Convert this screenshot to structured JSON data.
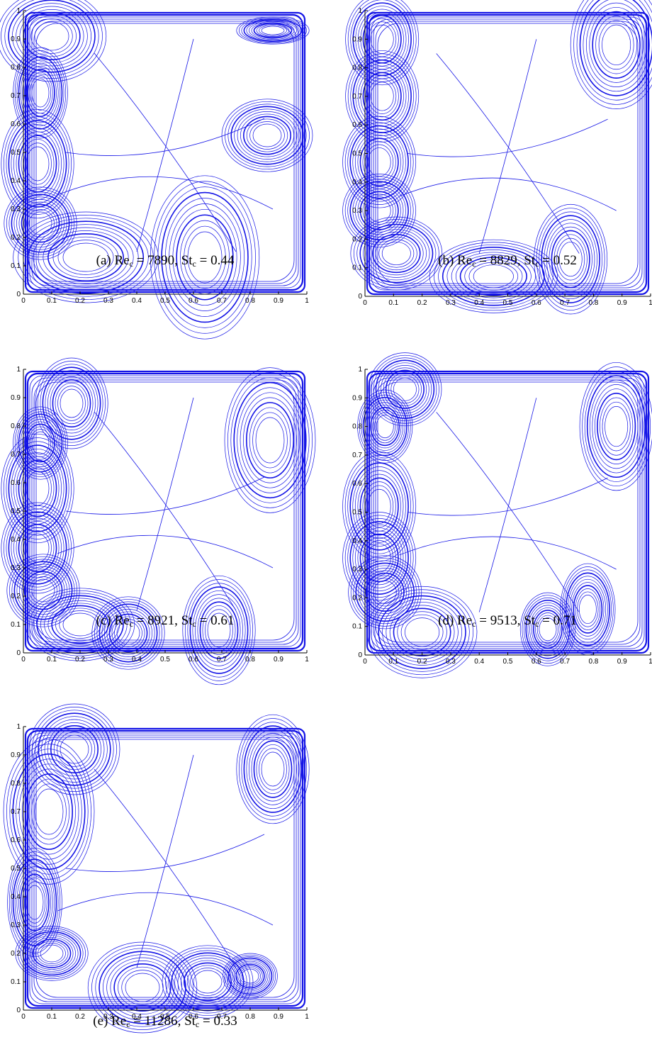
{
  "figure": {
    "panels": [
      {
        "label": "(a)",
        "re_value": "7890",
        "st_value": "0.44",
        "cores": [
          {
            "cx": 0.1,
            "cy": 0.91,
            "rx": 0.06,
            "ry": 0.05
          },
          {
            "cx": 0.06,
            "cy": 0.71,
            "rx": 0.03,
            "ry": 0.05
          },
          {
            "cx": 0.05,
            "cy": 0.46,
            "rx": 0.04,
            "ry": 0.06
          },
          {
            "cx": 0.06,
            "cy": 0.25,
            "rx": 0.04,
            "ry": 0.04
          },
          {
            "cx": 0.22,
            "cy": 0.13,
            "rx": 0.08,
            "ry": 0.05
          },
          {
            "cx": 0.64,
            "cy": 0.13,
            "rx": 0.06,
            "ry": 0.09
          },
          {
            "cx": 0.86,
            "cy": 0.56,
            "rx": 0.05,
            "ry": 0.04
          },
          {
            "cx": 0.88,
            "cy": 0.93,
            "rx": 0.04,
            "ry": 0.015
          }
        ]
      },
      {
        "label": "(b)",
        "re_value": "8829",
        "st_value": "0.52",
        "cores": [
          {
            "cx": 0.06,
            "cy": 0.9,
            "rx": 0.04,
            "ry": 0.05
          },
          {
            "cx": 0.06,
            "cy": 0.7,
            "rx": 0.04,
            "ry": 0.05
          },
          {
            "cx": 0.05,
            "cy": 0.47,
            "rx": 0.04,
            "ry": 0.05
          },
          {
            "cx": 0.05,
            "cy": 0.3,
            "rx": 0.04,
            "ry": 0.04
          },
          {
            "cx": 0.11,
            "cy": 0.15,
            "rx": 0.05,
            "ry": 0.04
          },
          {
            "cx": 0.45,
            "cy": 0.07,
            "rx": 0.07,
            "ry": 0.04
          },
          {
            "cx": 0.72,
            "cy": 0.13,
            "rx": 0.04,
            "ry": 0.06
          },
          {
            "cx": 0.88,
            "cy": 0.88,
            "rx": 0.05,
            "ry": 0.07
          }
        ]
      },
      {
        "label": "(c)",
        "re_value": "8921",
        "st_value": "0.61",
        "cores": [
          {
            "cx": 0.17,
            "cy": 0.88,
            "rx": 0.04,
            "ry": 0.05
          },
          {
            "cx": 0.06,
            "cy": 0.74,
            "rx": 0.03,
            "ry": 0.04
          },
          {
            "cx": 0.05,
            "cy": 0.58,
            "rx": 0.04,
            "ry": 0.06
          },
          {
            "cx": 0.05,
            "cy": 0.37,
            "rx": 0.04,
            "ry": 0.05
          },
          {
            "cx": 0.07,
            "cy": 0.22,
            "rx": 0.04,
            "ry": 0.04
          },
          {
            "cx": 0.2,
            "cy": 0.1,
            "rx": 0.06,
            "ry": 0.04
          },
          {
            "cx": 0.37,
            "cy": 0.07,
            "rx": 0.04,
            "ry": 0.04
          },
          {
            "cx": 0.69,
            "cy": 0.08,
            "rx": 0.04,
            "ry": 0.06
          },
          {
            "cx": 0.87,
            "cy": 0.75,
            "rx": 0.05,
            "ry": 0.08
          }
        ]
      },
      {
        "label": "(d)",
        "re_value": "9513",
        "st_value": "0.71",
        "cores": [
          {
            "cx": 0.14,
            "cy": 0.93,
            "rx": 0.04,
            "ry": 0.04
          },
          {
            "cx": 0.07,
            "cy": 0.8,
            "rx": 0.03,
            "ry": 0.04
          },
          {
            "cx": 0.05,
            "cy": 0.52,
            "rx": 0.04,
            "ry": 0.06
          },
          {
            "cx": 0.05,
            "cy": 0.34,
            "rx": 0.04,
            "ry": 0.05
          },
          {
            "cx": 0.07,
            "cy": 0.22,
            "rx": 0.04,
            "ry": 0.04
          },
          {
            "cx": 0.2,
            "cy": 0.08,
            "rx": 0.06,
            "ry": 0.05
          },
          {
            "cx": 0.64,
            "cy": 0.09,
            "rx": 0.03,
            "ry": 0.04
          },
          {
            "cx": 0.78,
            "cy": 0.16,
            "rx": 0.03,
            "ry": 0.05
          },
          {
            "cx": 0.88,
            "cy": 0.8,
            "rx": 0.04,
            "ry": 0.07
          }
        ]
      },
      {
        "label": "(e)",
        "re_value": "11286",
        "st_value": "0.33",
        "cores": [
          {
            "cx": 0.18,
            "cy": 0.92,
            "rx": 0.05,
            "ry": 0.05
          },
          {
            "cx": 0.09,
            "cy": 0.7,
            "rx": 0.05,
            "ry": 0.08
          },
          {
            "cx": 0.04,
            "cy": 0.38,
            "rx": 0.03,
            "ry": 0.06
          },
          {
            "cx": 0.1,
            "cy": 0.2,
            "rx": 0.04,
            "ry": 0.03
          },
          {
            "cx": 0.42,
            "cy": 0.08,
            "rx": 0.06,
            "ry": 0.05
          },
          {
            "cx": 0.65,
            "cy": 0.1,
            "rx": 0.05,
            "ry": 0.04
          },
          {
            "cx": 0.8,
            "cy": 0.12,
            "rx": 0.03,
            "ry": 0.025
          },
          {
            "cx": 0.88,
            "cy": 0.85,
            "rx": 0.04,
            "ry": 0.06
          }
        ]
      }
    ],
    "re_symbol": "Re",
    "st_symbol": "St",
    "subscript": "c",
    "equals": "=",
    "separator": ",",
    "x_ticks": [
      "0",
      "0.1",
      "0.2",
      "0.3",
      "0.4",
      "0.5",
      "0.6",
      "0.7",
      "0.8",
      "0.9",
      "1"
    ],
    "y_ticks": [
      "0",
      "0.1",
      "0.2",
      "0.3",
      "0.4",
      "0.5",
      "0.6",
      "0.7",
      "0.8",
      "0.9",
      "1"
    ],
    "line_color": "#1414e6"
  }
}
